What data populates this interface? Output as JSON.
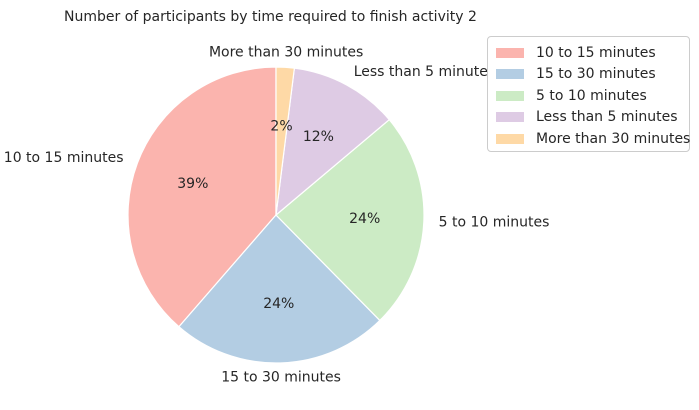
{
  "chart_data": {
    "type": "pie",
    "title": "Number of participants by time required to finish activity 2",
    "slices": [
      {
        "label": "10 to 15 minutes",
        "value": 39,
        "pct_label": "39%",
        "color": "#fbb4ae"
      },
      {
        "label": "15 to 30 minutes",
        "value": 24,
        "pct_label": "24%",
        "color": "#b3cde3"
      },
      {
        "label": "5 to 10 minutes",
        "value": 24,
        "pct_label": "24%",
        "color": "#ccebc5"
      },
      {
        "label": "Less than 5 minutes",
        "value": 12,
        "pct_label": "12%",
        "color": "#decbe4"
      },
      {
        "label": "More than 30 minutes",
        "value": 2,
        "pct_label": "2%",
        "color": "#fed9a6"
      }
    ],
    "start_angle_deg": 90,
    "direction": "counterclockwise",
    "legend": {
      "position": "top-right",
      "entries": [
        "10 to 15 minutes",
        "15 to 30 minutes",
        "5 to 10 minutes",
        "Less than 5 minutes",
        "More than 30 minutes"
      ]
    }
  }
}
